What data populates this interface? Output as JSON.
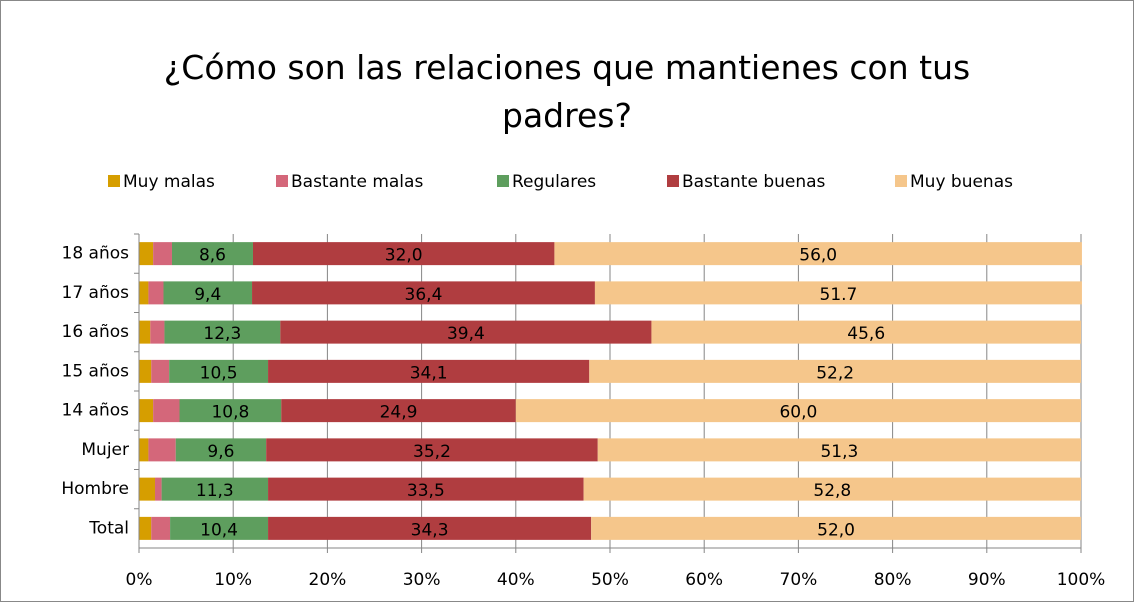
{
  "chart_data": {
    "type": "bar",
    "orientation": "horizontal",
    "stacked": true,
    "title": "¿Cómo son las relaciones que mantienes con tus padres?",
    "categories": [
      "18 años",
      "17 años",
      "16 años",
      "15 años",
      "14 años",
      "Mujer",
      "Hombre",
      "Total"
    ],
    "series": [
      {
        "name": "Muy malas",
        "color": "#d69e00",
        "values": [
          1.5,
          1.0,
          1.2,
          1.3,
          1.5,
          1.0,
          1.7,
          1.3
        ]
      },
      {
        "name": "Bastante malas",
        "color": "#d4677a",
        "values": [
          2.0,
          1.6,
          1.5,
          1.9,
          2.8,
          2.9,
          0.7,
          2.0
        ]
      },
      {
        "name": "Regulares",
        "color": "#5e9e5e",
        "values": [
          8.6,
          9.4,
          12.3,
          10.5,
          10.8,
          9.6,
          11.3,
          10.4
        ],
        "value_labels": [
          "8,6",
          "9,4",
          "12,3",
          "10,5",
          "10,8",
          "9,6",
          "11,3",
          "10,4"
        ]
      },
      {
        "name": "Bastante buenas",
        "color": "#b03d40",
        "values": [
          32.0,
          36.4,
          39.4,
          34.1,
          24.9,
          35.2,
          33.5,
          34.3
        ],
        "value_labels": [
          "32,0",
          "36,4",
          "39,4",
          "34,1",
          "24,9",
          "35,2",
          "33,5",
          "34,3"
        ]
      },
      {
        "name": "Muy buenas",
        "color": "#f5c68b",
        "values": [
          56.0,
          51.7,
          45.6,
          52.2,
          60.0,
          51.3,
          52.8,
          52.0
        ],
        "value_labels": [
          "56,0",
          "51.7",
          "45,6",
          "52,2",
          "60,0",
          "51,3",
          "52,8",
          "52,0"
        ]
      }
    ],
    "xlim": [
      0,
      100
    ],
    "xticks": [
      {
        "value": 0,
        "label": "0%"
      },
      {
        "value": 10,
        "label": "10%"
      },
      {
        "value": 20,
        "label": "20%"
      },
      {
        "value": 30,
        "label": "30%"
      },
      {
        "value": 40,
        "label": "40%"
      },
      {
        "value": 50,
        "label": "50%"
      },
      {
        "value": 60,
        "label": "60%"
      },
      {
        "value": 70,
        "label": "70%"
      },
      {
        "value": 80,
        "label": "80%"
      },
      {
        "value": 90,
        "label": "90%"
      },
      {
        "value": 100,
        "label": "100%"
      }
    ],
    "grid": true,
    "legend": "top"
  }
}
